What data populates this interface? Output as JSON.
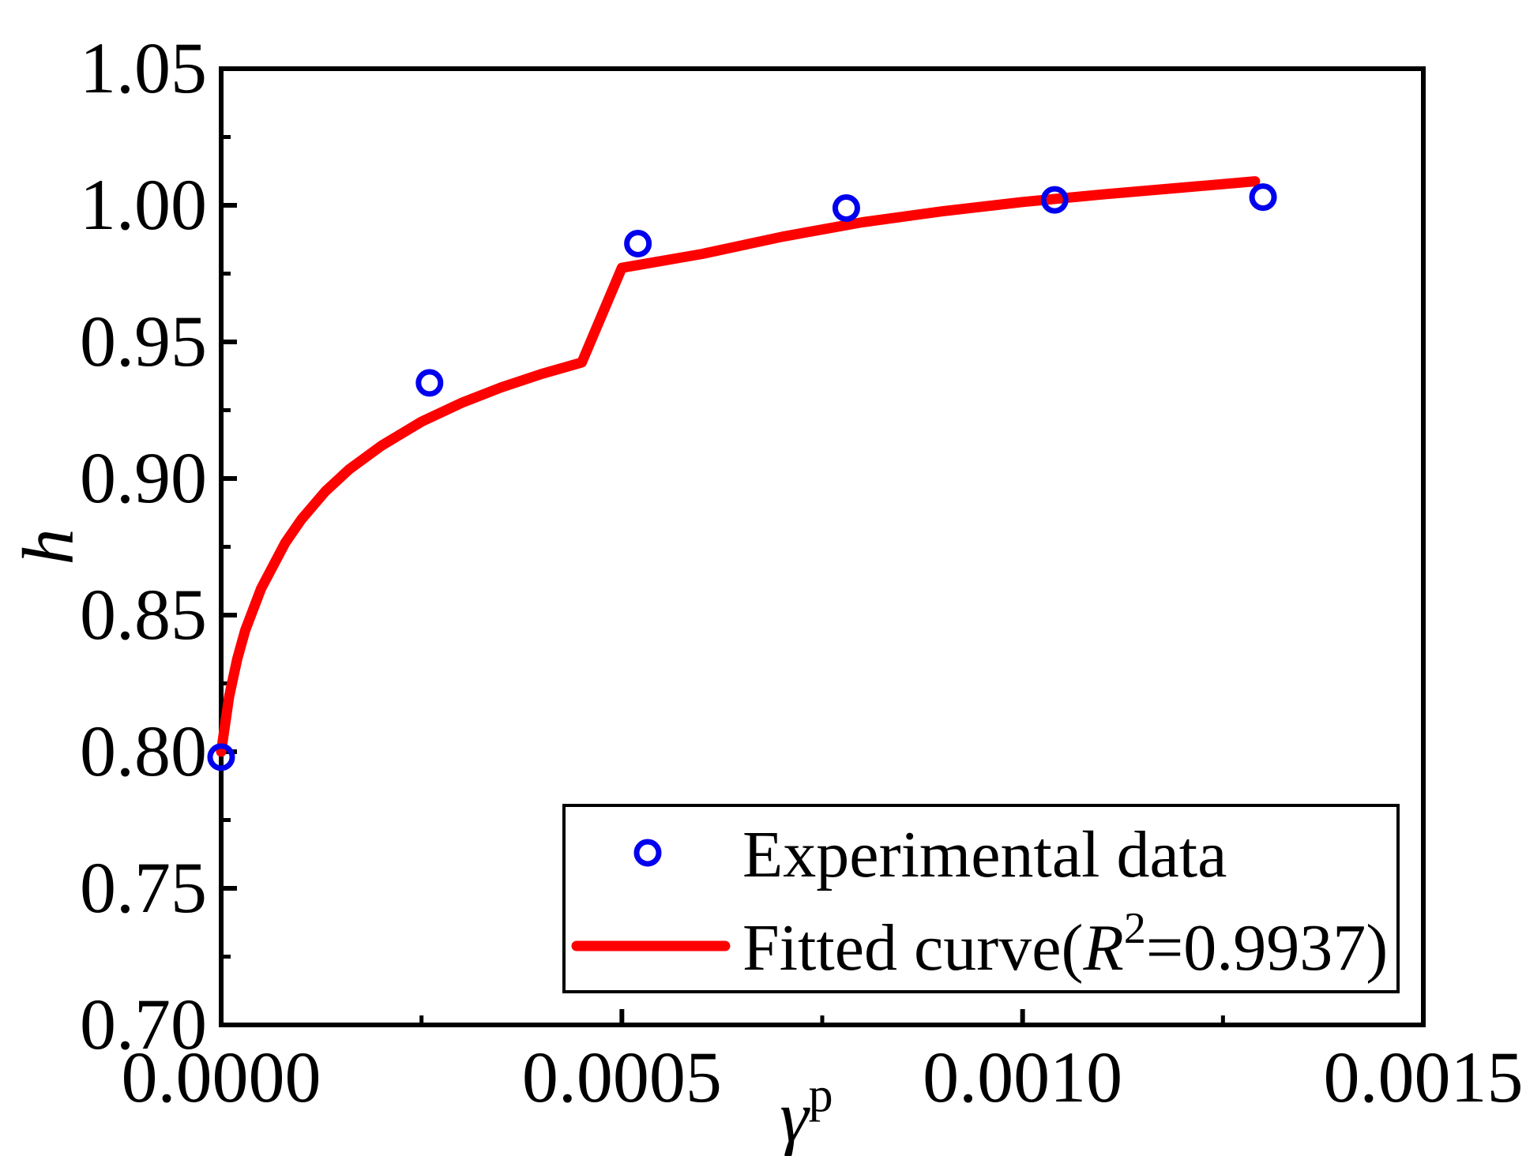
{
  "chart_data": {
    "type": "scatter",
    "title": "",
    "xlabel": "γ",
    "xlabel_sup": "p",
    "ylabel": "h",
    "xlim": [
      0.0,
      0.0015
    ],
    "ylim": [
      0.7,
      1.05
    ],
    "x_ticks": [
      0.0,
      0.0005,
      0.001,
      0.0015
    ],
    "x_tick_labels": [
      "0.0000",
      "0.0005",
      "0.0010",
      "0.0015"
    ],
    "x_minor_ticks": [
      0.00025,
      0.00075,
      0.00125
    ],
    "y_ticks": [
      0.7,
      0.75,
      0.8,
      0.85,
      0.9,
      0.95,
      1.0,
      1.05
    ],
    "y_tick_labels": [
      "0.70",
      "0.75",
      "0.80",
      "0.85",
      "0.90",
      "0.95",
      "1.00",
      "1.05"
    ],
    "y_minor_ticks": [
      0.725,
      0.775,
      0.825,
      0.875,
      0.925,
      0.975,
      1.025
    ],
    "grid": false,
    "legend_position": "bottom-right",
    "series": [
      {
        "name": "Experimental data",
        "kind": "scatter",
        "marker": "open-circle",
        "color": "#0000ee",
        "x": [
          0.0,
          0.00026,
          0.00052,
          0.00078,
          0.00104,
          0.0013
        ],
        "y": [
          0.798,
          0.935,
          0.986,
          0.999,
          1.002,
          1.003
        ]
      },
      {
        "name_prefix": "Fitted curve(",
        "name_r": "R",
        "name_sup": "2",
        "name_suffix": "=0.9937)",
        "kind": "line",
        "color": "#ff0000",
        "x": [
          0.0,
          1e-05,
          2e-05,
          3e-05,
          5e-05,
          8e-05,
          0.0001,
          0.00013,
          0.00016,
          0.0002,
          0.00025,
          0.0003,
          0.00035,
          0.0004,
          0.00045,
          0.0005,
          0.0006,
          0.0007,
          0.0008,
          0.0009,
          0.001,
          0.0011,
          0.0012,
          0.00129
        ],
        "y": [
          0.8,
          0.8202,
          0.8339,
          0.8444,
          0.8598,
          0.8765,
          0.885,
          0.8953,
          0.9034,
          0.912,
          0.9208,
          0.9277,
          0.9334,
          0.9383,
          0.9425,
          0.9771,
          0.9822,
          0.9885,
          0.9938,
          0.9978,
          1.0012,
          1.004,
          1.0065,
          1.0088
        ]
      }
    ]
  }
}
